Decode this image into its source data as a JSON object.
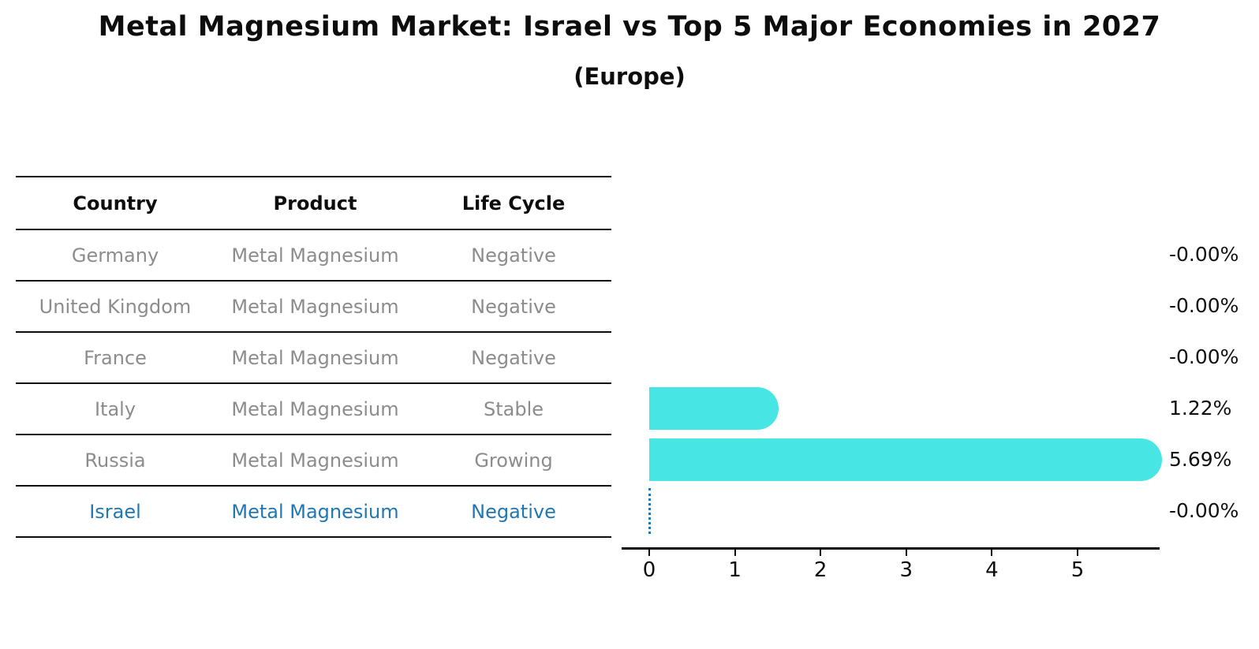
{
  "header": {
    "title": "Metal Magnesium Market: Israel vs Top 5 Major Economies in 2027",
    "subtitle": "(Europe)"
  },
  "table": {
    "columns": [
      "Country",
      "Product",
      "Life Cycle"
    ],
    "rows": [
      {
        "country": "Germany",
        "product": "Metal Magnesium",
        "life_cycle": "Negative",
        "highlight": false
      },
      {
        "country": "United Kingdom",
        "product": "Metal Magnesium",
        "life_cycle": "Negative",
        "highlight": false
      },
      {
        "country": "France",
        "product": "Metal Magnesium",
        "life_cycle": "Negative",
        "highlight": false
      },
      {
        "country": "Italy",
        "product": "Metal Magnesium",
        "life_cycle": "Stable",
        "highlight": false
      },
      {
        "country": "Russia",
        "product": "Metal Magnesium",
        "life_cycle": "Growing",
        "highlight": false
      },
      {
        "country": "Israel",
        "product": "Metal Magnesium",
        "life_cycle": "Negative",
        "highlight": true
      }
    ]
  },
  "chart_data": {
    "type": "bar",
    "orientation": "horizontal",
    "title": "Metal Magnesium Market: Israel vs Top 5 Major Economies in 2027",
    "subtitle": "(Europe)",
    "categories": [
      "Germany",
      "United Kingdom",
      "France",
      "Italy",
      "Russia",
      "Israel"
    ],
    "values": [
      -0.0,
      -0.0,
      -0.0,
      1.22,
      5.69,
      -0.0
    ],
    "value_labels": [
      "-0.00%",
      "-0.00%",
      "-0.00%",
      "1.22%",
      "5.69%",
      "-0.00%"
    ],
    "x_ticks": [
      0,
      1,
      2,
      3,
      4,
      5
    ],
    "x_tick_labels": [
      "0",
      "1",
      "2",
      "3",
      "4",
      "5"
    ],
    "xlim": [
      0,
      5.95
    ],
    "grid": false,
    "legend": "none",
    "highlight_index": 5,
    "zero_marker_style": "dotted-vertical-line"
  },
  "colors": {
    "bar": "#48e5e5",
    "highlight": "#1f77b4",
    "muted_text": "#8c8c8c",
    "line": "#0d0d0d",
    "value_text": "#111111",
    "background": "#ffffff"
  }
}
